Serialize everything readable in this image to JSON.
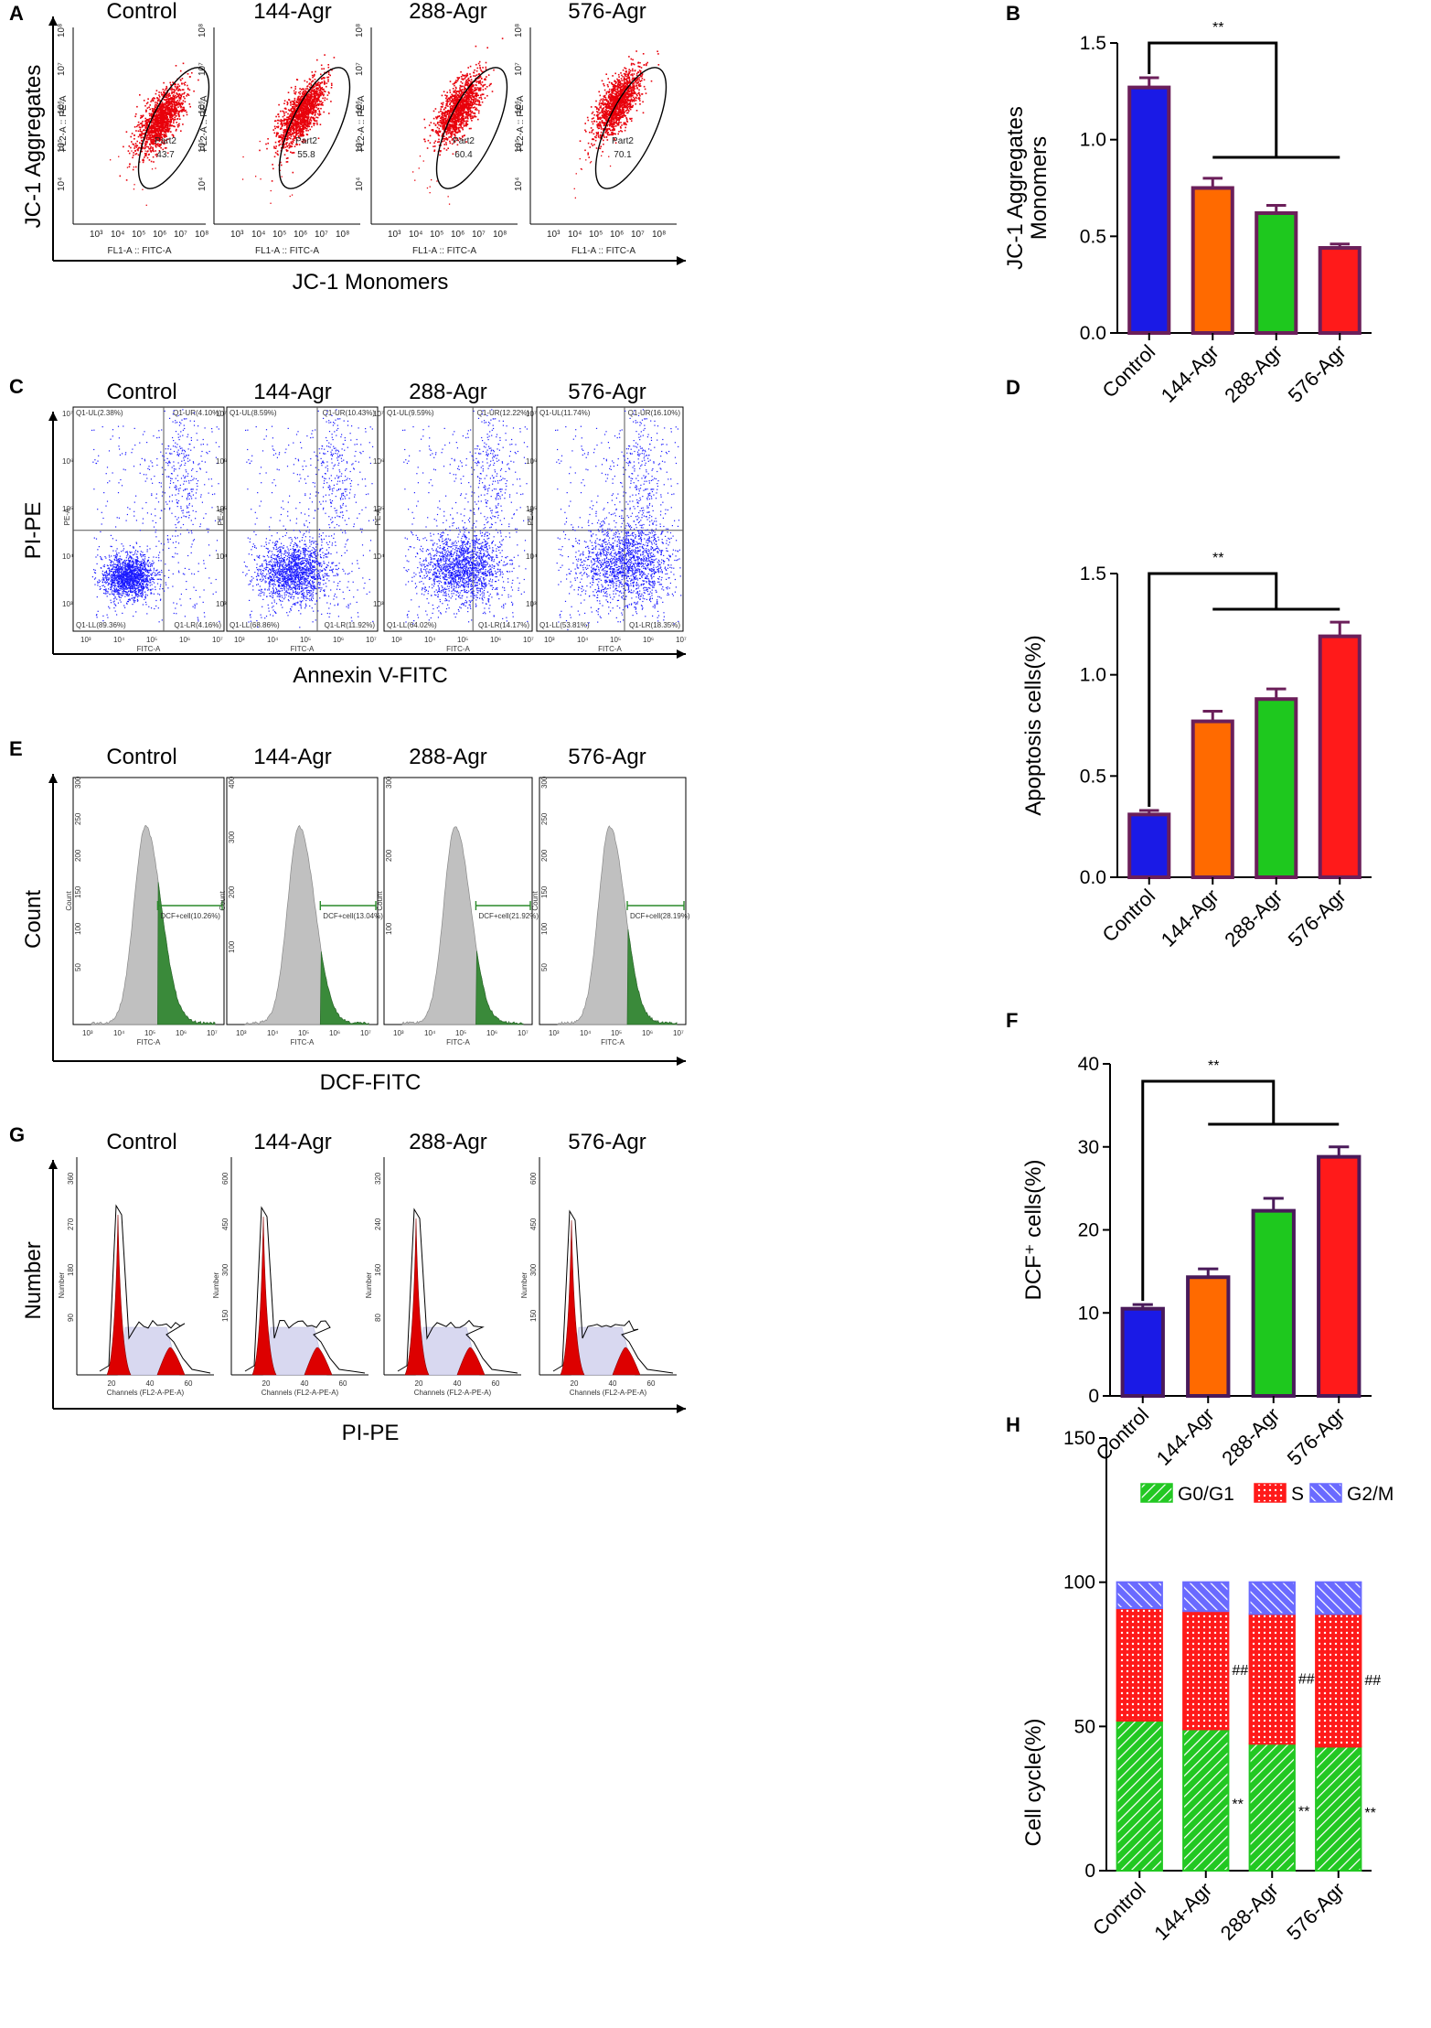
{
  "panels": {
    "A": {
      "letter": "A",
      "titles": [
        "Control",
        "144-Agr",
        "288-Agr",
        "576-Agr"
      ],
      "y_title": "JC-1 Aggregates",
      "x_title": "JC-1 Monomers",
      "inner_x_label": "FL1-A :: FITC-A",
      "inner_y_label": "FL2-A :: PE-A",
      "gate_name": "Part2",
      "gate_values": [
        "43.7",
        "55.8",
        "60.4",
        "70.1"
      ],
      "x_ticks": [
        "10³",
        "10⁴",
        "10⁵",
        "10⁶",
        "10⁷",
        "10⁸"
      ],
      "y_ticks": [
        "10⁸",
        "10⁷",
        "10⁶",
        "10⁵",
        "10⁴"
      ],
      "dot_color": "#e8000b"
    },
    "C": {
      "letter": "C",
      "titles": [
        "Control",
        "144-Agr",
        "288-Agr",
        "576-Agr"
      ],
      "y_title": "PI-PE",
      "x_title": "Annexin V-FITC",
      "inner_x_label": "FITC-A",
      "inner_y_label": "PE-A",
      "quadrants": [
        {
          "ul": "Q1-UL(2.38%)",
          "ur": "Q1-UR(4.10%)",
          "ll": "Q1-LL(89.36%)",
          "lr": "Q1-LR(4.16%)"
        },
        {
          "ul": "Q1-UL(8.59%)",
          "ur": "Q1-UR(10.43%)",
          "ll": "Q1-LL(68.86%)",
          "lr": "Q1-LR(11.92%)"
        },
        {
          "ul": "Q1-UL(9.59%)",
          "ur": "Q1-UR(12.22%)",
          "ll": "Q1-LL(64.02%)",
          "lr": "Q1-LR(14.17%)"
        },
        {
          "ul": "Q1-UL(11.74%)",
          "ur": "Q1-UR(16.10%)",
          "ll": "Q1-LL(53.81%)",
          "lr": "Q1-LR(18.35%)"
        }
      ],
      "x_ticks": [
        "10³",
        "10⁴",
        "10⁵",
        "10⁶",
        "10⁷"
      ],
      "y_ticks": [
        "10⁷",
        "10⁶",
        "10⁵",
        "10⁴",
        "10³"
      ],
      "dot_color": "#1a1aff"
    },
    "E": {
      "letter": "E",
      "titles": [
        "Control",
        "144-Agr",
        "288-Agr",
        "576-Agr"
      ],
      "y_title": "Count",
      "x_title": "DCF-FITC",
      "inner_x_label": "FITC-A",
      "inner_y_label": "Count",
      "gate_labels": [
        "DCF+cell(10.26%)",
        "DCF+cell(13.04%)",
        "DCF+cell(21.92%)",
        "DCF+cell(28.19%)"
      ],
      "y_tick_sets": [
        [
          "300",
          "250",
          "200",
          "150",
          "100",
          "50"
        ],
        [
          "400",
          "300",
          "200",
          "100"
        ],
        [
          "300",
          "200",
          "100"
        ],
        [
          "300",
          "250",
          "200",
          "150",
          "100",
          "50"
        ]
      ],
      "x_ticks": [
        "10³",
        "10⁴",
        "10⁵",
        "10⁶",
        "10⁷"
      ],
      "gray": "#c0c0c0",
      "green": "#3a8a3a"
    },
    "G": {
      "letter": "G",
      "titles": [
        "Control",
        "144-Agr",
        "288-Agr",
        "576-Agr"
      ],
      "y_title": "Number",
      "x_title": "PI-PE",
      "inner_x_label": "Channels (FL2-A-PE-A)",
      "inner_y_label": "Number",
      "x_ticks": [
        "20",
        "40",
        "60"
      ],
      "y_tick_sets": [
        [
          "360",
          "270",
          "180",
          "90"
        ],
        [
          "600",
          "450",
          "300",
          "150"
        ],
        [
          "320",
          "240",
          "160",
          "80"
        ],
        [
          "600",
          "450",
          "300",
          "150"
        ]
      ]
    }
  },
  "chart_data": [
    {
      "panel": "B",
      "type": "bar",
      "categories": [
        "Control",
        "144-Agr",
        "288-Agr",
        "576-Agr"
      ],
      "values": [
        1.27,
        0.75,
        0.62,
        0.44
      ],
      "errors": [
        0.05,
        0.05,
        0.04,
        0.02
      ],
      "ylabel": "JC-1 Aggregates\nMonomers",
      "ylabel_lines": [
        "JC-1 Aggregates",
        "Monomers"
      ],
      "ylim": [
        0,
        1.5
      ],
      "yticks": [
        0.0,
        0.5,
        1.0,
        1.5
      ],
      "ytick_labels": [
        "0.0",
        "0.5",
        "1.0",
        "1.5"
      ],
      "significance": "**",
      "bar_colors": [
        "#1a1ae6",
        "#ff6a00",
        "#1ec81e",
        "#ff1a1a"
      ],
      "edge_color": "#6b1f5a"
    },
    {
      "panel": "D",
      "type": "bar",
      "categories": [
        "Control",
        "144-Agr",
        "288-Agr",
        "576-Agr"
      ],
      "values": [
        0.31,
        0.77,
        0.88,
        1.19
      ],
      "errors": [
        0.02,
        0.05,
        0.05,
        0.07
      ],
      "ylabel": "Apoptosis cells(%)",
      "ylim": [
        0,
        1.5
      ],
      "yticks": [
        0.0,
        0.5,
        1.0,
        1.5
      ],
      "ytick_labels": [
        "0.0",
        "0.5",
        "1.0",
        "1.5"
      ],
      "significance": "**",
      "bar_colors": [
        "#1a1ae6",
        "#ff6a00",
        "#1ec81e",
        "#ff1a1a"
      ],
      "edge_color": "#6b1f5a"
    },
    {
      "panel": "F",
      "type": "bar",
      "categories": [
        "Control",
        "144-Agr",
        "288-Agr",
        "576-Agr"
      ],
      "values": [
        10.5,
        14.3,
        22.3,
        28.8
      ],
      "errors": [
        0.5,
        1.0,
        1.5,
        1.2
      ],
      "ylabel": "DCF⁺ cells(%)",
      "ylim": [
        0,
        40
      ],
      "yticks": [
        0,
        10,
        20,
        30,
        40
      ],
      "ytick_labels": [
        "0",
        "10",
        "20",
        "30",
        "40"
      ],
      "significance": "**",
      "bar_colors": [
        "#1a1ae6",
        "#ff6a00",
        "#1ec81e",
        "#ff1a1a"
      ],
      "edge_color": "#4a1a5a"
    },
    {
      "panel": "H",
      "type": "bar",
      "stacked": true,
      "categories": [
        "Control",
        "144-Agr",
        "288-Agr",
        "576-Agr"
      ],
      "series": [
        {
          "name": "G0/G1",
          "values": [
            52,
            49,
            44,
            43
          ],
          "color": "#22c822"
        },
        {
          "name": "S",
          "values": [
            39,
            41,
            45,
            46
          ],
          "color": "#ff1a1a"
        },
        {
          "name": "G2/M",
          "values": [
            9,
            10,
            11,
            11
          ],
          "color": "#6a6aff"
        }
      ],
      "ylabel": "Cell cycle(%)",
      "ylim": [
        0,
        150
      ],
      "yticks": [
        0,
        50,
        100,
        150
      ],
      "ytick_labels": [
        "0",
        "50",
        "100",
        "150"
      ],
      "annotations_s": [
        "",
        "##",
        "##",
        "##"
      ],
      "annotations_g": [
        "",
        "**",
        "**",
        "**"
      ]
    }
  ]
}
